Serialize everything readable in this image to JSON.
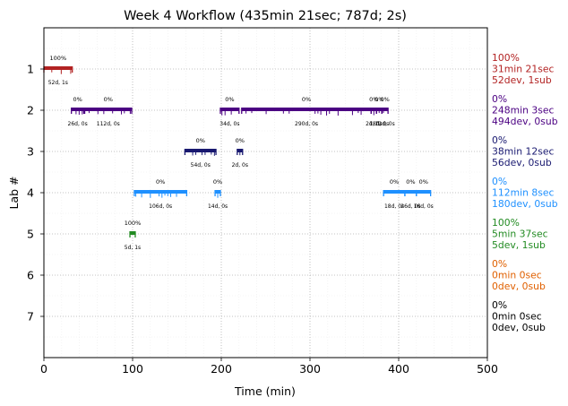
{
  "chart_data": {
    "type": "timeline",
    "title": "Week 4 Workflow (435min 21sec; 787d; 2s)",
    "xlabel": "Time (min)",
    "ylabel": "Lab #",
    "xlim": [
      0,
      500
    ],
    "ylim": [
      8,
      0
    ],
    "xticks": [
      "0",
      "100",
      "200",
      "300",
      "400",
      "500"
    ],
    "yticks": [
      "1",
      "2",
      "3",
      "4",
      "5",
      "6",
      "7"
    ],
    "grid": true,
    "lanes": [
      {
        "lab": 1,
        "color": "#b22222",
        "summary": [
          "100%",
          "31min 21sec",
          "52dev, 1sub"
        ],
        "segments": [
          {
            "start": 0,
            "end": 32,
            "pct": "100%",
            "info": "52d, 1s"
          }
        ]
      },
      {
        "lab": 2,
        "color": "#4b0082",
        "summary": [
          "0%",
          "248min 3sec",
          "494dev, 0sub"
        ],
        "segments": [
          {
            "start": 31,
            "end": 45,
            "pct": "0%",
            "info": "26d, 0s"
          },
          {
            "start": 46,
            "end": 99,
            "pct": "0%",
            "info": "112d, 0s"
          },
          {
            "start": 199,
            "end": 220,
            "pct": "0%",
            "info": "34d, 0s"
          },
          {
            "start": 223,
            "end": 369,
            "pct": "0%",
            "info": "290d, 0s"
          },
          {
            "start": 369,
            "end": 375,
            "pct": "0%",
            "info": "2d, 0s"
          },
          {
            "start": 375,
            "end": 381,
            "pct": "0%",
            "info": "18d, 0s"
          },
          {
            "start": 381,
            "end": 388,
            "pct": "0%",
            "info": "12d, 0s"
          }
        ]
      },
      {
        "lab": 3,
        "color": "#191970",
        "summary": [
          "0%",
          "38min 12sec",
          "56dev, 0sub"
        ],
        "segments": [
          {
            "start": 159,
            "end": 194,
            "pct": "0%",
            "info": "54d, 0s"
          },
          {
            "start": 218,
            "end": 224,
            "pct": "0%",
            "info": "2d, 0s"
          }
        ]
      },
      {
        "lab": 4,
        "color": "#1e90ff",
        "summary": [
          "0%",
          "112min 8sec",
          "180dev, 0sub"
        ],
        "segments": [
          {
            "start": 102,
            "end": 161,
            "pct": "0%",
            "info": "106d, 0s"
          },
          {
            "start": 193,
            "end": 199,
            "pct": "0%",
            "info": "14d, 0s"
          },
          {
            "start": 383,
            "end": 407,
            "pct": "0%",
            "info": "18d, 0s"
          },
          {
            "start": 407,
            "end": 420,
            "pct": "0%",
            "info": "26d, 0s"
          },
          {
            "start": 420,
            "end": 436,
            "pct": "0%",
            "info": "16d, 0s"
          }
        ]
      },
      {
        "lab": 5,
        "color": "#228b22",
        "summary": [
          "100%",
          "5min 37sec",
          "5dev, 1sub"
        ],
        "segments": [
          {
            "start": 97,
            "end": 103,
            "pct": "100%",
            "info": "5d, 1s"
          }
        ]
      },
      {
        "lab": 6,
        "color": "#e06000",
        "summary": [
          "0%",
          "0min 0sec",
          "0dev, 0sub"
        ],
        "segments": []
      },
      {
        "lab": 7,
        "color": "#000000",
        "summary": [
          "0%",
          "0min 0sec",
          "0dev, 0sub"
        ],
        "segments": []
      }
    ]
  }
}
